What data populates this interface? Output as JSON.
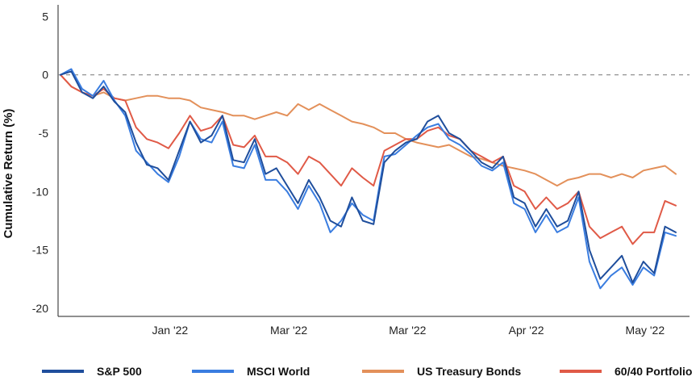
{
  "chart_data": {
    "type": "line",
    "title": "",
    "xlabel": "",
    "ylabel": "Cumulative Return (%)",
    "ylim": [
      -20.7,
      6
    ],
    "yticks": [
      5,
      0,
      -5,
      -10,
      -15,
      -20
    ],
    "xticks": [
      {
        "label": "Jan '22",
        "x": 20
      },
      {
        "label": "Mar '22",
        "x": 42
      },
      {
        "label": "Mar '22",
        "x": 64
      },
      {
        "label": "Apr '22",
        "x": 86
      },
      {
        "label": "May '22",
        "x": 108
      }
    ],
    "xlim": [
      0,
      114
    ],
    "baseline": 0,
    "grid": false,
    "legend_position": "bottom",
    "series": [
      {
        "name": "S&P 500",
        "color": "#1f4e9c",
        "x": [
          0,
          2,
          4,
          6,
          8,
          10,
          12,
          14,
          16,
          18,
          20,
          22,
          24,
          26,
          28,
          30,
          32,
          34,
          36,
          38,
          40,
          42,
          44,
          46,
          48,
          50,
          52,
          54,
          56,
          58,
          60,
          62,
          64,
          66,
          68,
          70,
          72,
          74,
          76,
          78,
          80,
          82,
          84,
          86,
          88,
          90,
          92,
          94,
          96,
          98,
          100,
          102,
          104,
          106,
          108,
          110,
          112,
          114
        ],
        "values": [
          0,
          0.3,
          -1.5,
          -2.0,
          -1.0,
          -2.3,
          -3.2,
          -5.8,
          -7.7,
          -8.0,
          -9.0,
          -6.5,
          -4.0,
          -5.8,
          -5.2,
          -3.5,
          -7.3,
          -7.5,
          -5.5,
          -8.5,
          -8.0,
          -9.5,
          -11.0,
          -9.0,
          -10.5,
          -12.5,
          -13.0,
          -10.5,
          -12.5,
          -12.8,
          -7.5,
          -6.5,
          -5.8,
          -5.5,
          -4.0,
          -3.5,
          -5.0,
          -5.5,
          -6.5,
          -7.5,
          -8.0,
          -7.0,
          -10.5,
          -11.0,
          -13.0,
          -11.5,
          -13.0,
          -12.5,
          -10.0,
          -15.0,
          -17.5,
          -16.5,
          -15.5,
          -17.8,
          -16.0,
          -17.0,
          -13.0,
          -13.5
        ]
      },
      {
        "name": "MSCI World",
        "color": "#3a7de0",
        "x": [
          0,
          2,
          4,
          6,
          8,
          10,
          12,
          14,
          16,
          18,
          20,
          22,
          24,
          26,
          28,
          30,
          32,
          34,
          36,
          38,
          40,
          42,
          44,
          46,
          48,
          50,
          52,
          54,
          56,
          58,
          60,
          62,
          64,
          66,
          68,
          70,
          72,
          74,
          76,
          78,
          80,
          82,
          84,
          86,
          88,
          90,
          92,
          94,
          96,
          98,
          100,
          102,
          104,
          106,
          108,
          110,
          112,
          114
        ],
        "values": [
          0,
          0.5,
          -1.2,
          -1.8,
          -0.5,
          -2.2,
          -3.5,
          -6.5,
          -7.5,
          -8.5,
          -9.2,
          -7.0,
          -4.0,
          -5.5,
          -5.8,
          -4.0,
          -7.8,
          -8.0,
          -6.0,
          -9.0,
          -9.0,
          -10.0,
          -11.5,
          -9.5,
          -11.0,
          -13.5,
          -12.5,
          -11.0,
          -12.0,
          -12.5,
          -7.0,
          -6.8,
          -6.0,
          -5.2,
          -4.5,
          -4.2,
          -5.5,
          -6.0,
          -6.8,
          -7.8,
          -8.2,
          -7.5,
          -11.0,
          -11.5,
          -13.5,
          -12.0,
          -13.5,
          -13.0,
          -10.5,
          -16.0,
          -18.3,
          -17.2,
          -16.5,
          -18.0,
          -16.5,
          -17.2,
          -13.5,
          -13.8
        ]
      },
      {
        "name": "US Treasury Bonds",
        "color": "#e3905a",
        "x": [
          0,
          2,
          4,
          6,
          8,
          10,
          12,
          14,
          16,
          18,
          20,
          22,
          24,
          26,
          28,
          30,
          32,
          34,
          36,
          38,
          40,
          42,
          44,
          46,
          48,
          50,
          52,
          54,
          56,
          58,
          60,
          62,
          64,
          66,
          68,
          70,
          72,
          74,
          76,
          78,
          80,
          82,
          84,
          86,
          88,
          90,
          92,
          94,
          96,
          98,
          100,
          102,
          104,
          106,
          108,
          110,
          112,
          114
        ],
        "values": [
          0,
          -1.0,
          -1.5,
          -1.8,
          -1.5,
          -2.0,
          -2.2,
          -2.0,
          -1.8,
          -1.8,
          -2.0,
          -2.0,
          -2.2,
          -2.8,
          -3.0,
          -3.2,
          -3.5,
          -3.5,
          -3.8,
          -3.5,
          -3.2,
          -3.5,
          -2.5,
          -3.0,
          -2.5,
          -3.0,
          -3.5,
          -4.0,
          -4.2,
          -4.5,
          -5.0,
          -5.0,
          -5.5,
          -5.8,
          -6.0,
          -6.2,
          -6.0,
          -6.5,
          -7.0,
          -7.2,
          -7.5,
          -7.8,
          -8.0,
          -8.2,
          -8.5,
          -9.0,
          -9.5,
          -9.0,
          -8.8,
          -8.5,
          -8.5,
          -8.8,
          -8.5,
          -8.8,
          -8.2,
          -8.0,
          -7.8,
          -8.5
        ]
      },
      {
        "name": "60/40 Portfolio",
        "color": "#e05a47",
        "x": [
          0,
          2,
          4,
          6,
          8,
          10,
          12,
          14,
          16,
          18,
          20,
          22,
          24,
          26,
          28,
          30,
          32,
          34,
          36,
          38,
          40,
          42,
          44,
          46,
          48,
          50,
          52,
          54,
          56,
          58,
          60,
          62,
          64,
          66,
          68,
          70,
          72,
          74,
          76,
          78,
          80,
          82,
          84,
          86,
          88,
          90,
          92,
          94,
          96,
          98,
          100,
          102,
          104,
          106,
          108,
          110,
          112,
          114
        ],
        "values": [
          0,
          -1.0,
          -1.5,
          -1.8,
          -1.2,
          -2.0,
          -2.2,
          -4.5,
          -5.5,
          -5.8,
          -6.3,
          -5.0,
          -3.5,
          -4.8,
          -4.5,
          -3.5,
          -6.0,
          -6.2,
          -5.2,
          -7.0,
          -7.0,
          -7.5,
          -8.5,
          -7.0,
          -7.5,
          -8.5,
          -9.5,
          -8.0,
          -8.8,
          -9.5,
          -6.5,
          -6.0,
          -5.5,
          -5.5,
          -4.8,
          -4.5,
          -5.2,
          -5.5,
          -6.5,
          -7.0,
          -7.5,
          -7.0,
          -9.5,
          -10.0,
          -11.5,
          -10.5,
          -11.5,
          -11.0,
          -10.0,
          -13.0,
          -14.0,
          -13.5,
          -13.0,
          -14.5,
          -13.5,
          -13.5,
          -10.8,
          -11.2
        ]
      }
    ]
  }
}
